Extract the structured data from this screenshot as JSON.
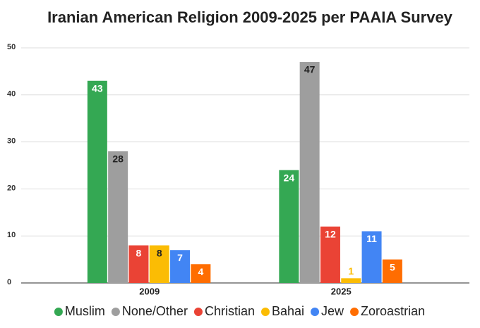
{
  "chart_data": {
    "type": "bar",
    "title": "Iranian American Religion 2009-2025 per PAAIA Survey",
    "categories": [
      "2009",
      "2025"
    ],
    "series": [
      {
        "name": "Muslim",
        "color": "#34a853",
        "values": [
          43,
          24
        ]
      },
      {
        "name": "None/Other",
        "color": "#9e9e9e",
        "values": [
          28,
          47
        ]
      },
      {
        "name": "Christian",
        "color": "#ea4335",
        "values": [
          8,
          12
        ]
      },
      {
        "name": "Bahai",
        "color": "#fbbc04",
        "values": [
          8,
          1
        ]
      },
      {
        "name": "Jew",
        "color": "#4285f4",
        "values": [
          7,
          11
        ]
      },
      {
        "name": "Zoroastrian",
        "color": "#ff6d01",
        "values": [
          4,
          5
        ]
      }
    ],
    "ylim": [
      0,
      50
    ],
    "yticks": [
      0,
      10,
      20,
      30,
      40,
      50
    ],
    "grid": true,
    "legend": "bottom"
  }
}
